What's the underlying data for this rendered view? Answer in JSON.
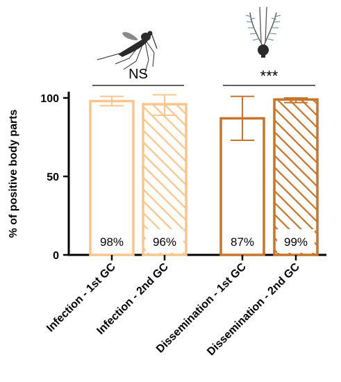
{
  "chart_data": {
    "type": "bar",
    "title": "",
    "xlabel": "",
    "ylabel": "% of positive body parts",
    "ylim": [
      0,
      100
    ],
    "yticks": [
      0,
      50,
      100
    ],
    "grid": false,
    "legend": "none",
    "categories": [
      "Infection - 1st GC",
      "Infection - 2nd GC",
      "Dissemination - 1st GC",
      "Dissemination - 2nd GC"
    ],
    "values": [
      98,
      96,
      87,
      99
    ],
    "error_low": [
      95,
      89,
      73,
      97
    ],
    "error_high": [
      101,
      102,
      101,
      100
    ],
    "bar_labels": [
      "98%",
      "96%",
      "87%",
      "99%"
    ],
    "patterns": [
      "open",
      "hatched",
      "open",
      "hatched"
    ],
    "colors": [
      "#FAC58C",
      "#FAC58C",
      "#C8742A",
      "#C8742A"
    ],
    "comparisons": [
      {
        "groups": [
          0,
          1
        ],
        "label": "NS"
      },
      {
        "groups": [
          2,
          3
        ],
        "label": "***"
      }
    ],
    "icons": [
      "mosquito-icon",
      "mosquito-head-icon"
    ]
  }
}
